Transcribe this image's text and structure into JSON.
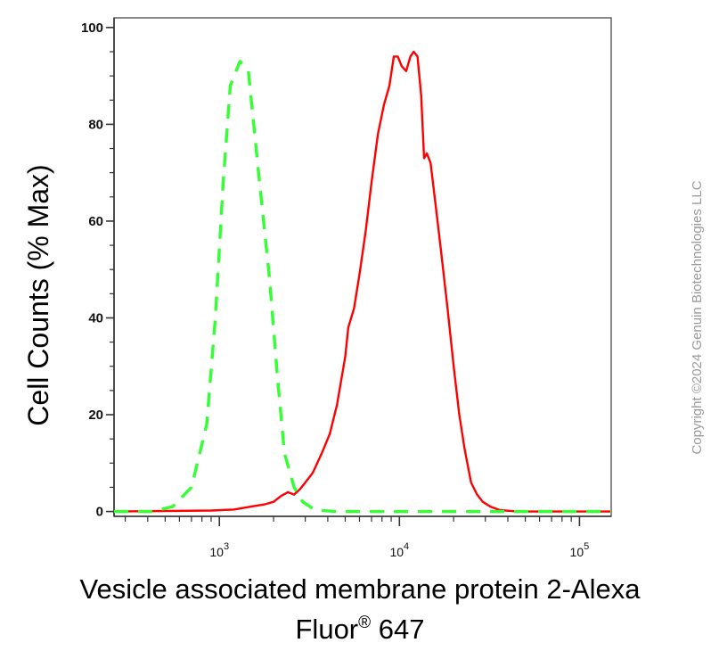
{
  "chart_data": {
    "type": "line",
    "title": "",
    "xlabel_line1": "Vesicle associated membrane protein 2-Alexa",
    "xlabel_line2_main": "Fluor",
    "xlabel_line2_sup": "®",
    "xlabel_line2_end": " 647",
    "ylabel": "Cell Counts (% Max)",
    "x_scale": "log",
    "xlim": [
      260,
      150000
    ],
    "ylim": [
      -1,
      102
    ],
    "y_ticks": [
      0,
      20,
      40,
      60,
      80,
      100
    ],
    "x_ticks": [
      {
        "value": 1000,
        "base": "10",
        "exp": "3"
      },
      {
        "value": 10000,
        "base": "10",
        "exp": "4"
      },
      {
        "value": 100000,
        "base": "10",
        "exp": "5"
      }
    ],
    "grid": false,
    "legend": "none",
    "copyright": "Copyright ©2024 Genuin Biotechnologies LLC",
    "series": [
      {
        "color": "#ff0000",
        "dash": "solid",
        "points": [
          [
            260,
            0
          ],
          [
            900,
            0.2
          ],
          [
            1200,
            0.4
          ],
          [
            1500,
            1
          ],
          [
            1800,
            1.5
          ],
          [
            2000,
            2
          ],
          [
            2200,
            3.2
          ],
          [
            2400,
            4
          ],
          [
            2600,
            3.5
          ],
          [
            2800,
            4.6
          ],
          [
            3000,
            6
          ],
          [
            3300,
            8
          ],
          [
            3700,
            12
          ],
          [
            4100,
            16
          ],
          [
            4500,
            22
          ],
          [
            5000,
            32
          ],
          [
            5200,
            38
          ],
          [
            5600,
            42
          ],
          [
            6000,
            49
          ],
          [
            6500,
            58
          ],
          [
            7000,
            68
          ],
          [
            7600,
            78
          ],
          [
            8200,
            84
          ],
          [
            8800,
            88
          ],
          [
            9300,
            94
          ],
          [
            9800,
            94
          ],
          [
            10300,
            92
          ],
          [
            10900,
            91
          ],
          [
            11500,
            94
          ],
          [
            12000,
            95
          ],
          [
            12600,
            94
          ],
          [
            13200,
            86
          ],
          [
            13700,
            73
          ],
          [
            14200,
            74
          ],
          [
            14900,
            72
          ],
          [
            15800,
            64
          ],
          [
            17000,
            54
          ],
          [
            18500,
            42
          ],
          [
            20000,
            30
          ],
          [
            21500,
            20
          ],
          [
            23000,
            13
          ],
          [
            25000,
            6
          ],
          [
            27000,
            3.5
          ],
          [
            29000,
            2
          ],
          [
            32000,
            1
          ],
          [
            36000,
            0.3
          ],
          [
            45000,
            0
          ],
          [
            150000,
            0
          ]
        ]
      },
      {
        "color": "#33ff33",
        "dash": "dashed",
        "points": [
          [
            260,
            0
          ],
          [
            420,
            0
          ],
          [
            550,
            1
          ],
          [
            700,
            5
          ],
          [
            850,
            18
          ],
          [
            950,
            40
          ],
          [
            1050,
            68
          ],
          [
            1150,
            88
          ],
          [
            1300,
            93
          ],
          [
            1450,
            91
          ],
          [
            1650,
            70
          ],
          [
            1900,
            48
          ],
          [
            2100,
            28
          ],
          [
            2300,
            12
          ],
          [
            2600,
            5
          ],
          [
            2900,
            2
          ],
          [
            3400,
            0.3
          ],
          [
            4500,
            0
          ],
          [
            150000,
            0
          ]
        ]
      }
    ]
  }
}
